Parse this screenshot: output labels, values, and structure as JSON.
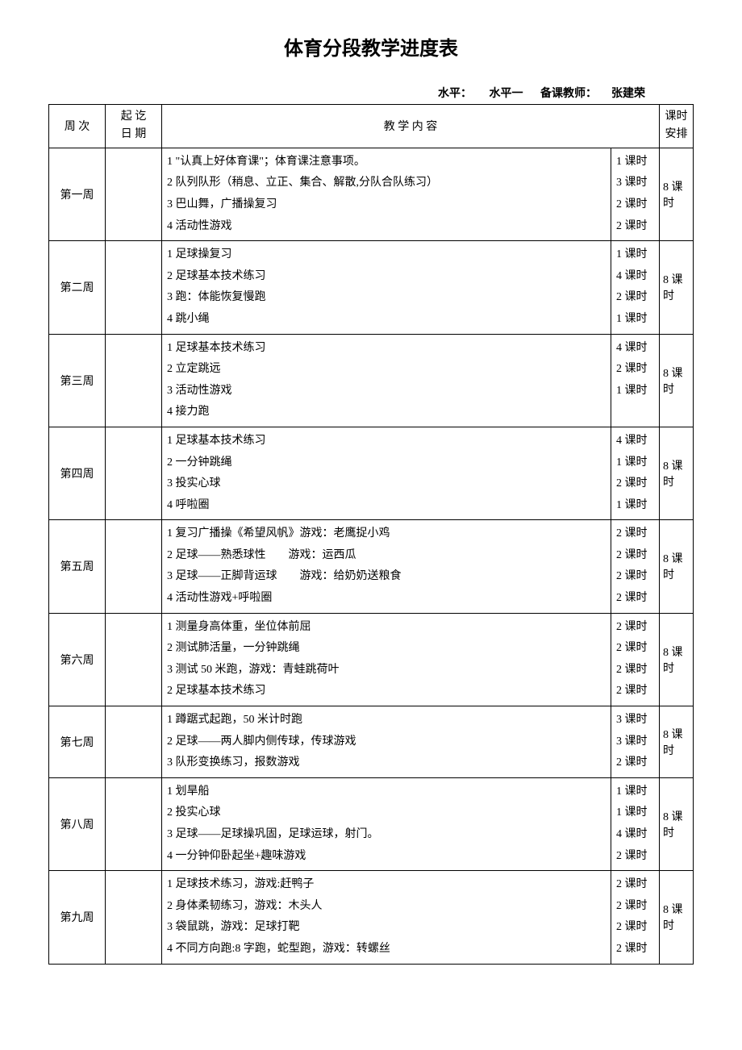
{
  "title": "体育分段教学进度表",
  "meta": {
    "level_label": "水平：",
    "level_value": "水平一",
    "teacher_label": "备课教师：",
    "teacher_value": "张建荣"
  },
  "headers": {
    "week": "周 次",
    "date_l1": "起 讫",
    "date_l2": "日 期",
    "content": "教 学 内 容",
    "total_l1": "课时",
    "total_l2": "安排"
  },
  "weeks": [
    {
      "name": "第一周",
      "items": [
        {
          "text": "1 \"认真上好体育课\"；体育课注意事项。",
          "hours": "1 课时"
        },
        {
          "text": "2 队列队形（稍息、立正、集合、解散,分队合队练习）",
          "hours": "3 课时"
        },
        {
          "text": "3 巴山舞，广播操复习",
          "hours": "2 课时"
        },
        {
          "text": "4 活动性游戏",
          "hours": "2 课时"
        }
      ],
      "total": "8 课时"
    },
    {
      "name": "第二周",
      "items": [
        {
          "text": "1 足球操复习",
          "hours": "1 课时"
        },
        {
          "text": "2 足球基本技术练习",
          "hours": "4 课时"
        },
        {
          "text": "3 跑：体能恢复慢跑",
          "hours": "2 课时"
        },
        {
          "text": "4 跳小绳",
          "hours": "1 课时"
        }
      ],
      "total": "8 课时"
    },
    {
      "name": "第三周",
      "items": [
        {
          "text": "1 足球基本技术练习",
          "hours": "4 课时"
        },
        {
          "text": "2 立定跳远",
          "hours": "2 课时"
        },
        {
          "text": "3 活动性游戏",
          "hours": "1 课时"
        },
        {
          "text": "4 接力跑",
          "hours": ""
        }
      ],
      "total": "8 课时"
    },
    {
      "name": "第四周",
      "items": [
        {
          "text": "1 足球基本技术练习",
          "hours": "4 课时"
        },
        {
          "text": "2 一分钟跳绳",
          "hours": "1 课时"
        },
        {
          "text": "3 投实心球",
          "hours": "2 课时"
        },
        {
          "text": "4 呼啦圈",
          "hours": "1 课时"
        }
      ],
      "total": "8 课时"
    },
    {
      "name": "第五周",
      "items": [
        {
          "text": "1 复习广播操《希望风帆》游戏：老鹰捉小鸡",
          "hours": "2 课时"
        },
        {
          "text": "2 足球——熟悉球性　　游戏：运西瓜",
          "hours": "2 课时"
        },
        {
          "text": "3 足球——正脚背运球　　游戏：给奶奶送粮食",
          "hours": "2 课时"
        },
        {
          "text": "4 活动性游戏+呼啦圈",
          "hours": "2 课时"
        }
      ],
      "total": "8 课时"
    },
    {
      "name": "第六周",
      "items": [
        {
          "text": "1 测量身高体重，坐位体前屈",
          "hours": "2 课时"
        },
        {
          "text": "2 测试肺活量，一分钟跳绳",
          "hours": "2 课时"
        },
        {
          "text": "3 测试 50 米跑，游戏：青蛙跳荷叶",
          "hours": "2 课时"
        },
        {
          "text": "2 足球基本技术练习",
          "hours": "2 课时"
        }
      ],
      "total": "8 课时"
    },
    {
      "name": "第七周",
      "items": [
        {
          "text": "1 蹲踞式起跑，50 米计时跑",
          "hours": "3 课时"
        },
        {
          "text": "2 足球——两人脚内侧传球，传球游戏",
          "hours": "3 课时"
        },
        {
          "text": "3 队形变换练习，报数游戏",
          "hours": "2 课时"
        }
      ],
      "total": "8 课时"
    },
    {
      "name": "第八周",
      "items": [
        {
          "text": "1 划旱船",
          "hours": "1 课时"
        },
        {
          "text": "2 投实心球",
          "hours": "1 课时"
        },
        {
          "text": "3 足球——足球操巩固，足球运球，射门。",
          "hours": "4 课时"
        },
        {
          "text": "4 一分钟仰卧起坐+趣味游戏",
          "hours": "2 课时"
        }
      ],
      "total": "8 课时"
    },
    {
      "name": "第九周",
      "items": [
        {
          "text": "1 足球技术练习，游戏:赶鸭子",
          "hours": "2 课时"
        },
        {
          "text": "2 身体柔韧练习，游戏：木头人",
          "hours": "2 课时"
        },
        {
          "text": "3 袋鼠跳，游戏：足球打靶",
          "hours": "2 课时"
        },
        {
          "text": "4 不同方向跑:8 字跑，蛇型跑，游戏：转螺丝",
          "hours": "2 课时"
        }
      ],
      "total": "8 课时"
    }
  ]
}
